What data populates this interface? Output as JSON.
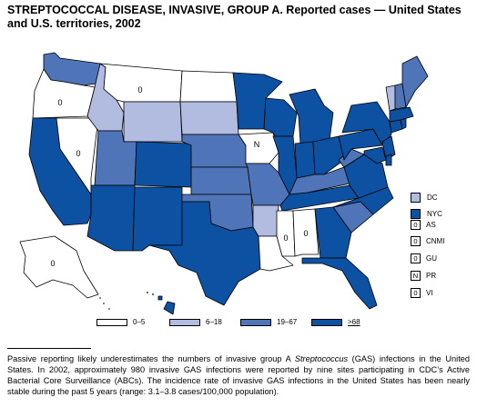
{
  "title": {
    "line1": "STREPTOCOCCAL DISEASE, INVASIVE, GROUP A. Reported cases — United States",
    "line2": "and U.S. territories, 2002"
  },
  "colors": {
    "c0": "#ffffff",
    "c1": "#b2bbe0",
    "c2": "#4f75b8",
    "c3": "#0d51a3",
    "border": "#000000"
  },
  "map_labels": {
    "WA": "",
    "OR": "0",
    "MT": "0",
    "NV": "0",
    "IA": "N",
    "MS": "0",
    "AL": "0",
    "AK": "0"
  },
  "legend": {
    "items": [
      {
        "key": "c0",
        "label": "0–5"
      },
      {
        "key": "c1",
        "label": "6–18"
      },
      {
        "key": "c2",
        "label": "19–67"
      },
      {
        "key": "c3",
        "label": "≥68"
      }
    ]
  },
  "extra_areas": [
    {
      "key": "c1",
      "label": "DC"
    },
    {
      "key": "c3",
      "label": "NYC"
    }
  ],
  "territories": [
    {
      "value": "0",
      "label": "AS"
    },
    {
      "value": "0",
      "label": "CNMI"
    },
    {
      "value": "0",
      "label": "GU"
    },
    {
      "value": "N",
      "label": "PR"
    },
    {
      "value": "0",
      "label": "VI"
    }
  ],
  "footnote": {
    "part1": "Passive reporting likely underestimates the numbers of invasive group A ",
    "italic": "Streptococcus",
    "part2": " (GAS) infections in the United States. In 2002, approximately 980 invasive GAS infections were reported by nine sites participating in CDC’s Active Bacterial Core Surveillance (ABCs). The incidence rate of invasive GAS infections in the United States has been nearly stable during the past 5 years (range: 3.1–3.8 cases/100,000 population)."
  }
}
